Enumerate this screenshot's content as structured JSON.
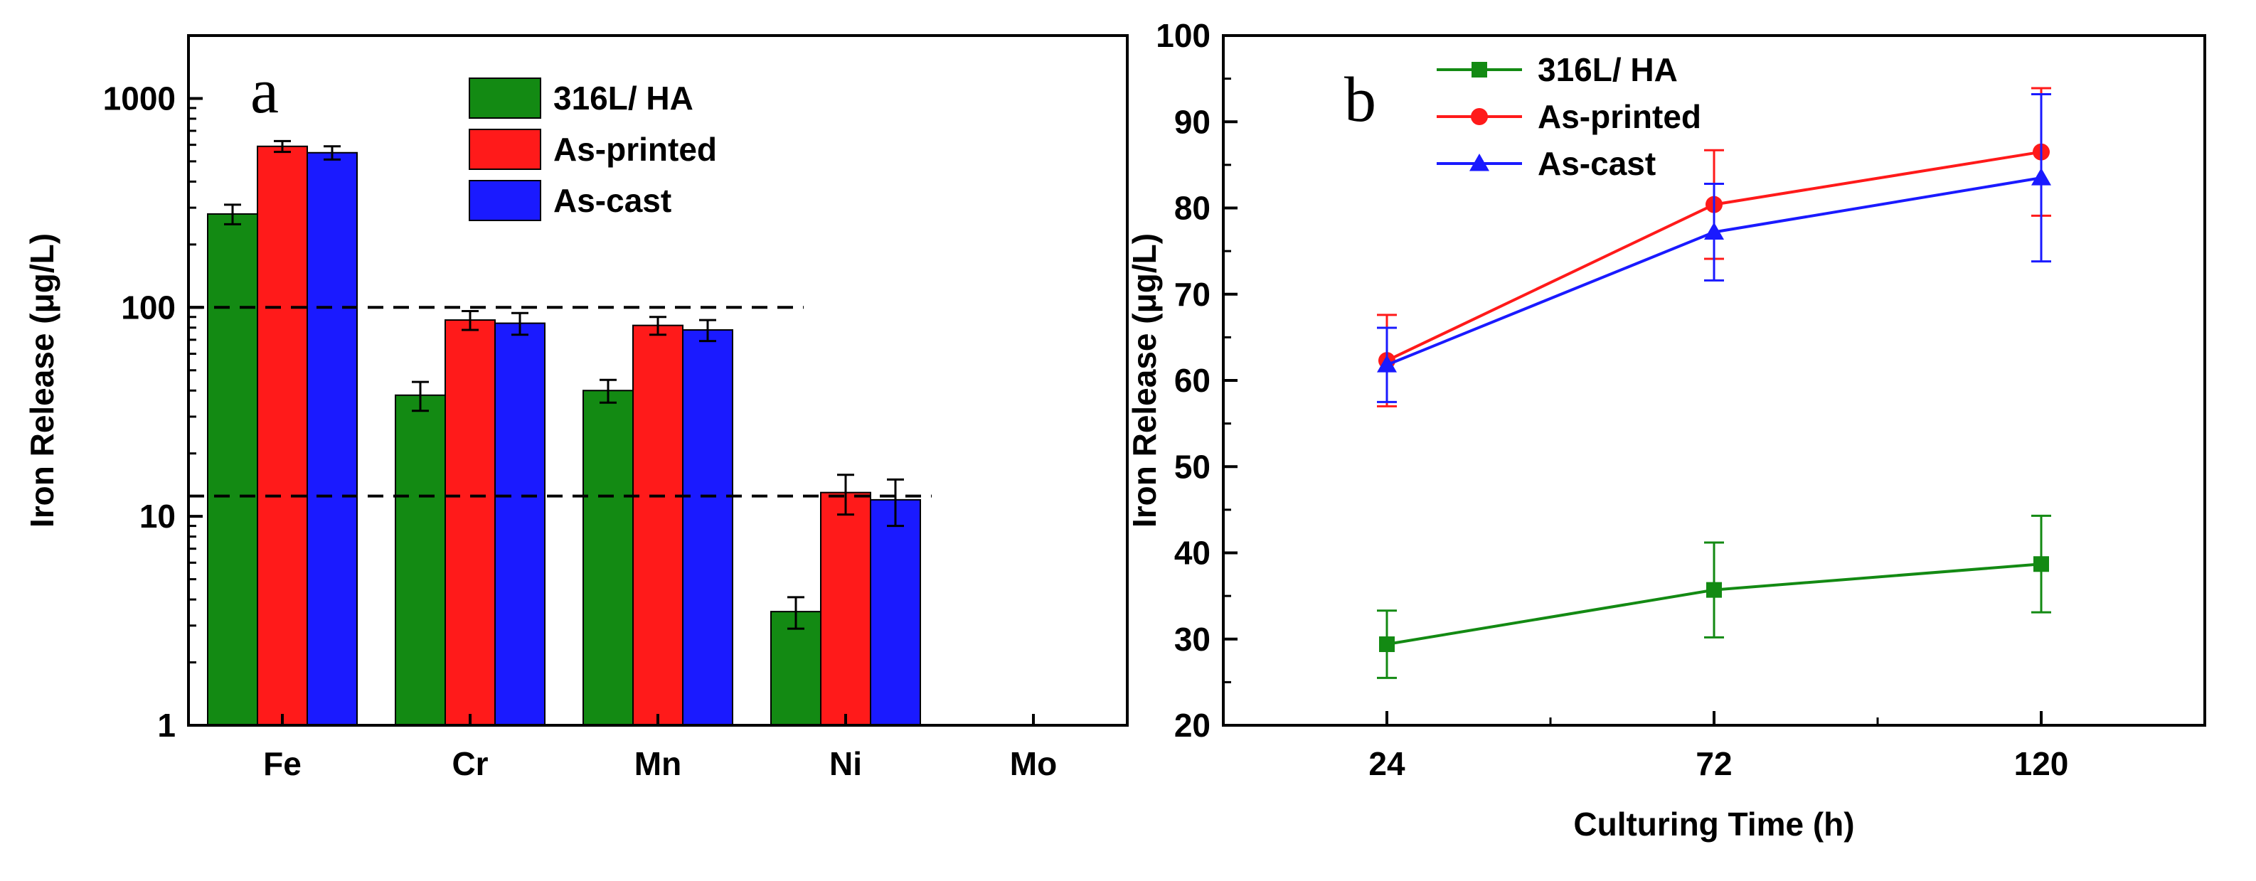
{
  "colors": {
    "green": "#138a13",
    "red": "#ff1a1a",
    "blue": "#1a1aff",
    "axis": "#000000"
  },
  "chart_data": [
    {
      "type": "bar",
      "panel_label": "a",
      "yscale": "log",
      "ylabel": "Iron Release (μg/L)",
      "xlabel": "",
      "ylim": [
        1,
        2000
      ],
      "yticks": [
        1,
        10,
        100,
        1000
      ],
      "ytick_labels": [
        "1",
        "10",
        "100",
        "1000"
      ],
      "categories": [
        "Fe",
        "Cr",
        "Mn",
        "Ni",
        "Mo"
      ],
      "series": [
        {
          "name": "316L/ HA",
          "color": "#138a13",
          "values": [
            280,
            38,
            40,
            3.5,
            null
          ],
          "errors": [
            30,
            6,
            5,
            0.6,
            null
          ]
        },
        {
          "name": "As-printed",
          "color": "#ff1a1a",
          "values": [
            590,
            87,
            82,
            13,
            null
          ],
          "errors": [
            35,
            9,
            8,
            2.8,
            null
          ]
        },
        {
          "name": "As-cast",
          "color": "#1a1aff",
          "values": [
            550,
            84,
            78,
            12,
            null
          ],
          "errors": [
            40,
            10,
            9,
            3,
            null
          ]
        }
      ],
      "reference_lines": [
        100,
        12.5
      ],
      "legend_position": "top-right"
    },
    {
      "type": "line",
      "panel_label": "b",
      "ylabel": "Iron Release (μg/L)",
      "xlabel": "Culturing Time (h)",
      "x": [
        24,
        72,
        120
      ],
      "xlim": [
        0,
        144
      ],
      "ylim": [
        20,
        100
      ],
      "yticks": [
        20,
        30,
        40,
        50,
        60,
        70,
        80,
        90,
        100
      ],
      "series": [
        {
          "name": "316L/ HA",
          "color": "#138a13",
          "marker": "square",
          "values": [
            29.4,
            35.7,
            38.7
          ],
          "errors": [
            3.9,
            5.5,
            5.6
          ]
        },
        {
          "name": "As-printed",
          "color": "#ff1a1a",
          "marker": "circle",
          "values": [
            62.3,
            80.4,
            86.5
          ],
          "errors": [
            5.3,
            6.3,
            7.4
          ]
        },
        {
          "name": "As-cast",
          "color": "#1a1aff",
          "marker": "triangle",
          "values": [
            61.8,
            77.2,
            83.5
          ],
          "errors": [
            4.3,
            5.6,
            9.7
          ]
        }
      ],
      "legend_position": "top-left"
    }
  ]
}
